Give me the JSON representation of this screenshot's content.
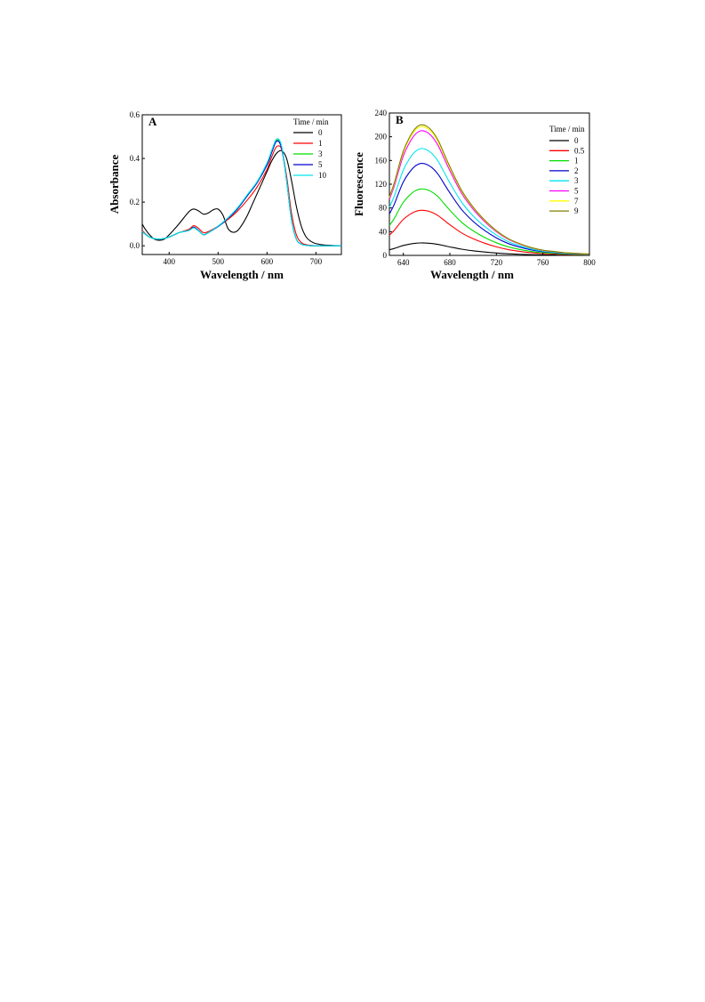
{
  "chart_data": [
    {
      "type": "line",
      "panel_label": "A",
      "xlabel": "Wavelength / nm",
      "ylabel": "Absorbance",
      "xlim": [
        345,
        752
      ],
      "ylim": [
        -0.04,
        0.6
      ],
      "xticks": [
        400,
        500,
        600,
        700
      ],
      "yticks": [
        0.0,
        0.2,
        0.4,
        0.6
      ],
      "x_tick_labels": [
        "400",
        "500",
        "600",
        "700"
      ],
      "y_tick_labels": [
        "0.0",
        "0.2",
        "0.4",
        "0.6"
      ],
      "grid": false,
      "legend": {
        "title": "Time / min",
        "placement": "top-right"
      },
      "series": [
        {
          "name": "0",
          "color": "#000000",
          "x": [
            345,
            350,
            360,
            370,
            380,
            390,
            400,
            420,
            440,
            450,
            460,
            470,
            480,
            490,
            500,
            510,
            520,
            530,
            540,
            550,
            560,
            570,
            580,
            590,
            600,
            610,
            620,
            630,
            640,
            650,
            660,
            670,
            680,
            690,
            700,
            720,
            752
          ],
          "y": [
            0.1,
            0.08,
            0.05,
            0.03,
            0.025,
            0.03,
            0.05,
            0.1,
            0.155,
            0.168,
            0.16,
            0.145,
            0.15,
            0.165,
            0.168,
            0.14,
            0.08,
            0.062,
            0.07,
            0.1,
            0.14,
            0.19,
            0.24,
            0.29,
            0.34,
            0.39,
            0.425,
            0.435,
            0.4,
            0.3,
            0.18,
            0.09,
            0.04,
            0.02,
            0.01,
            0.003,
            0.0
          ]
        },
        {
          "name": "1",
          "color": "#ff0000",
          "x": [
            345,
            360,
            380,
            400,
            420,
            440,
            450,
            460,
            470,
            480,
            500,
            520,
            540,
            560,
            580,
            600,
            610,
            620,
            630,
            640,
            650,
            660,
            670,
            680,
            690,
            700,
            720,
            752
          ],
          "y": [
            0.07,
            0.04,
            0.03,
            0.04,
            0.06,
            0.075,
            0.092,
            0.08,
            0.06,
            0.065,
            0.09,
            0.12,
            0.16,
            0.21,
            0.27,
            0.35,
            0.41,
            0.455,
            0.44,
            0.32,
            0.15,
            0.05,
            0.015,
            0.005,
            0.002,
            0.0,
            0.0,
            0.0
          ]
        },
        {
          "name": "3",
          "color": "#00dd00",
          "x": [
            345,
            360,
            380,
            400,
            420,
            440,
            450,
            460,
            470,
            480,
            500,
            520,
            540,
            560,
            580,
            600,
            610,
            620,
            630,
            640,
            650,
            660,
            670,
            680,
            690,
            700,
            720,
            752
          ],
          "y": [
            0.065,
            0.04,
            0.03,
            0.04,
            0.06,
            0.07,
            0.085,
            0.07,
            0.05,
            0.06,
            0.088,
            0.125,
            0.17,
            0.23,
            0.29,
            0.37,
            0.43,
            0.485,
            0.45,
            0.3,
            0.12,
            0.03,
            0.008,
            0.002,
            0.0,
            0.0,
            0.0,
            0.0
          ]
        },
        {
          "name": "5",
          "color": "#0000cc",
          "x": [
            345,
            360,
            380,
            400,
            420,
            440,
            450,
            460,
            470,
            480,
            500,
            520,
            540,
            560,
            580,
            600,
            610,
            620,
            630,
            640,
            650,
            660,
            670,
            680,
            690,
            700,
            720,
            752
          ],
          "y": [
            0.065,
            0.04,
            0.03,
            0.04,
            0.06,
            0.07,
            0.085,
            0.07,
            0.05,
            0.06,
            0.088,
            0.125,
            0.17,
            0.23,
            0.29,
            0.37,
            0.43,
            0.48,
            0.445,
            0.3,
            0.12,
            0.03,
            0.008,
            0.002,
            0.0,
            0.0,
            0.0,
            0.0
          ]
        },
        {
          "name": "10",
          "color": "#00e5ee",
          "x": [
            345,
            360,
            380,
            400,
            420,
            440,
            450,
            460,
            470,
            480,
            500,
            520,
            540,
            560,
            580,
            600,
            610,
            620,
            630,
            640,
            650,
            660,
            670,
            680,
            690,
            700,
            720,
            752
          ],
          "y": [
            0.065,
            0.04,
            0.03,
            0.04,
            0.06,
            0.07,
            0.082,
            0.068,
            0.05,
            0.06,
            0.09,
            0.128,
            0.175,
            0.235,
            0.295,
            0.38,
            0.44,
            0.49,
            0.455,
            0.3,
            0.12,
            0.03,
            0.008,
            0.002,
            0.0,
            0.0,
            0.0,
            0.0
          ]
        }
      ]
    },
    {
      "type": "line",
      "panel_label": "B",
      "xlabel": "Wavelength / nm",
      "ylabel": "Fluorescence",
      "xlim": [
        628,
        800
      ],
      "ylim": [
        0,
        240
      ],
      "xticks": [
        640,
        680,
        720,
        760,
        800
      ],
      "yticks": [
        0,
        40,
        80,
        120,
        160,
        200,
        240
      ],
      "x_tick_labels": [
        "640",
        "680",
        "720",
        "760",
        "800"
      ],
      "y_tick_labels": [
        "0",
        "40",
        "80",
        "120",
        "160",
        "200",
        "240"
      ],
      "grid": false,
      "legend": {
        "title": "Time / min",
        "placement": "top-right"
      },
      "series": [
        {
          "name": "0",
          "color": "#000000",
          "peak": 21
        },
        {
          "name": "0.5",
          "color": "#ff0000",
          "peak": 76
        },
        {
          "name": "1",
          "color": "#00dd00",
          "peak": 112
        },
        {
          "name": "2",
          "color": "#0000cc",
          "peak": 155
        },
        {
          "name": "3",
          "color": "#00e5ee",
          "peak": 180
        },
        {
          "name": "5",
          "color": "#ff00ff",
          "peak": 210
        },
        {
          "name": "7",
          "color": "#ffff00",
          "peak": 217
        },
        {
          "name": "9",
          "color": "#808000",
          "peak": 220
        }
      ],
      "shape": {
        "x": [
          628,
          632,
          636,
          640,
          645,
          650,
          655,
          660,
          665,
          670,
          675,
          680,
          690,
          700,
          710,
          720,
          730,
          740,
          750,
          760,
          770,
          780,
          790,
          800
        ],
        "y_relative": [
          0.45,
          0.55,
          0.68,
          0.8,
          0.9,
          0.97,
          1.0,
          0.99,
          0.95,
          0.88,
          0.78,
          0.68,
          0.5,
          0.37,
          0.27,
          0.19,
          0.13,
          0.09,
          0.06,
          0.04,
          0.03,
          0.02,
          0.015,
          0.01
        ]
      }
    }
  ]
}
